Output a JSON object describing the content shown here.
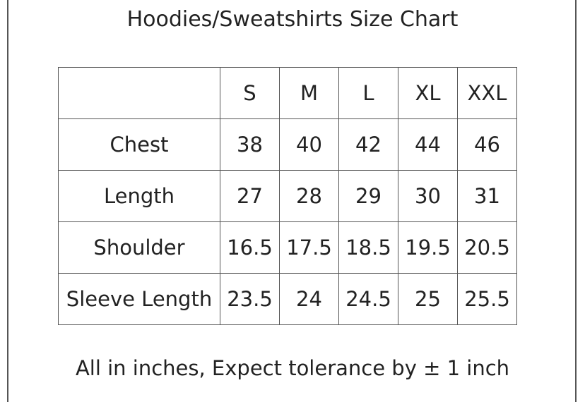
{
  "title": "Hoodies/Sweatshirts Size Chart",
  "table": {
    "columns": [
      "S",
      "M",
      "L",
      "XL",
      "XXL"
    ],
    "rows": [
      {
        "label": "Chest",
        "values": [
          "38",
          "40",
          "42",
          "44",
          "46"
        ]
      },
      {
        "label": "Length",
        "values": [
          "27",
          "28",
          "29",
          "30",
          "31"
        ]
      },
      {
        "label": "Shoulder",
        "values": [
          "16.5",
          "17.5",
          "18.5",
          "19.5",
          "20.5"
        ]
      },
      {
        "label": "Sleeve Length",
        "values": [
          "23.5",
          "24",
          "24.5",
          "25",
          "25.5"
        ]
      }
    ]
  },
  "footer": "All in inches, Expect tolerance by ± 1 inch"
}
